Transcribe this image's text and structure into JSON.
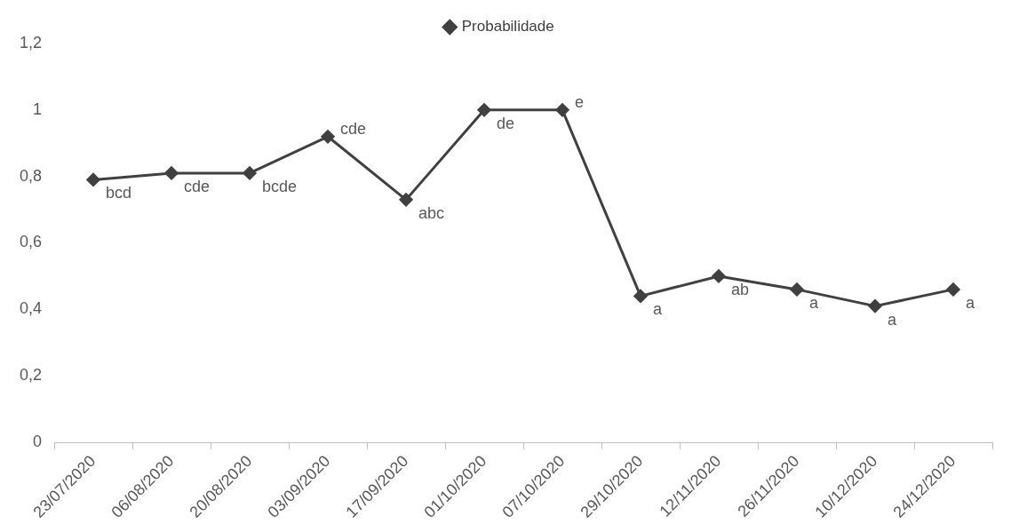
{
  "chart_data": {
    "type": "line",
    "categories": [
      "23/07/2020",
      "06/08/2020",
      "20/08/2020",
      "03/09/2020",
      "17/09/2020",
      "01/10/2020",
      "07/10/2020",
      "29/10/2020",
      "12/11/2020",
      "26/11/2020",
      "10/12/2020",
      "24/12/2020"
    ],
    "series": [
      {
        "name": "Probabilidade",
        "color": "#404040",
        "values": [
          0.79,
          0.81,
          0.81,
          0.92,
          0.73,
          1.0,
          1.0,
          0.44,
          0.5,
          0.46,
          0.41,
          0.46
        ],
        "value_labels": [
          "bcd",
          "cde",
          "bcde",
          "cde",
          "abc",
          "de",
          "e",
          "a",
          "ab",
          "a",
          "a",
          "a"
        ]
      }
    ],
    "ylim": [
      0,
      1.2
    ],
    "yticks": [
      {
        "value": 0,
        "label": "0"
      },
      {
        "value": 0.2,
        "label": "0,2"
      },
      {
        "value": 0.4,
        "label": "0,4"
      },
      {
        "value": 0.6,
        "label": "0,6"
      },
      {
        "value": 0.8,
        "label": "0,8"
      },
      {
        "value": 1,
        "label": "1"
      },
      {
        "value": 1.2,
        "label": "1,2"
      }
    ],
    "grid": false,
    "legend": "top",
    "marker": "diamond",
    "line_style": "solid"
  }
}
